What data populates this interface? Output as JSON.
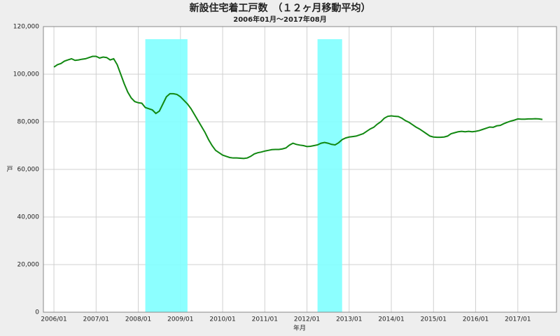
{
  "chart_data": {
    "type": "line",
    "title": "新設住宅着工戸数　（１２ヶ月移動平均）",
    "subtitle": "2006年01月～2017年08月",
    "x_label": "年月",
    "y_label": "戸",
    "color": "#118811",
    "shaded_color": "#80ffff",
    "shaded_regions": [
      {
        "start": "2008/03",
        "end": "2009/03"
      },
      {
        "start": "2012/04",
        "end": "2012/11"
      }
    ],
    "grid": true,
    "xlim": [
      "2005/10",
      "2017/12"
    ],
    "xticks": [
      "2006/01",
      "2007/01",
      "2008/01",
      "2009/01",
      "2010/01",
      "2011/01",
      "2012/01",
      "2013/01",
      "2014/01",
      "2015/01",
      "2016/01",
      "2017/01"
    ],
    "ylim": [
      0,
      120000
    ],
    "yticks": [
      0,
      {
        "value": 20000,
        "label": "20,000"
      },
      {
        "value": 40000,
        "label": "40,000"
      },
      {
        "value": 60000,
        "label": "60,000"
      },
      {
        "value": 80000,
        "label": "80,000"
      },
      {
        "value": 100000,
        "label": "100,000"
      },
      {
        "value": 120000,
        "label": "120,000"
      }
    ],
    "x": [
      "2006/01",
      "2006/02",
      "2006/03",
      "2006/04",
      "2006/05",
      "2006/06",
      "2006/07",
      "2006/08",
      "2006/09",
      "2006/10",
      "2006/11",
      "2006/12",
      "2007/01",
      "2007/02",
      "2007/03",
      "2007/04",
      "2007/05",
      "2007/06",
      "2007/07",
      "2007/08",
      "2007/09",
      "2007/10",
      "2007/11",
      "2007/12",
      "2008/01",
      "2008/02",
      "2008/03",
      "2008/04",
      "2008/05",
      "2008/06",
      "2008/07",
      "2008/08",
      "2008/09",
      "2008/10",
      "2008/11",
      "2008/12",
      "2009/01",
      "2009/02",
      "2009/03",
      "2009/04",
      "2009/05",
      "2009/06",
      "2009/07",
      "2009/08",
      "2009/09",
      "2009/10",
      "2009/11",
      "2009/12",
      "2010/01",
      "2010/02",
      "2010/03",
      "2010/04",
      "2010/05",
      "2010/06",
      "2010/07",
      "2010/08",
      "2010/09",
      "2010/10",
      "2010/11",
      "2010/12",
      "2011/01",
      "2011/02",
      "2011/03",
      "2011/04",
      "2011/05",
      "2011/06",
      "2011/07",
      "2011/08",
      "2011/09",
      "2011/10",
      "2011/11",
      "2011/12",
      "2012/01",
      "2012/02",
      "2012/03",
      "2012/04",
      "2012/05",
      "2012/06",
      "2012/07",
      "2012/08",
      "2012/09",
      "2012/10",
      "2012/11",
      "2012/12",
      "2013/01",
      "2013/02",
      "2013/03",
      "2013/04",
      "2013/05",
      "2013/06",
      "2013/07",
      "2013/08",
      "2013/09",
      "2013/10",
      "2013/11",
      "2013/12",
      "2014/01",
      "2014/02",
      "2014/03",
      "2014/04",
      "2014/05",
      "2014/06",
      "2014/07",
      "2014/08",
      "2014/09",
      "2014/10",
      "2014/11",
      "2014/12",
      "2015/01",
      "2015/02",
      "2015/03",
      "2015/04",
      "2015/05",
      "2015/06",
      "2015/07",
      "2015/08",
      "2015/09",
      "2015/10",
      "2015/11",
      "2015/12",
      "2016/01",
      "2016/02",
      "2016/03",
      "2016/04",
      "2016/05",
      "2016/06",
      "2016/07",
      "2016/08",
      "2016/09",
      "2016/10",
      "2016/11",
      "2016/12",
      "2017/01",
      "2017/02",
      "2017/03",
      "2017/04",
      "2017/05",
      "2017/06",
      "2017/07",
      "2017/08"
    ],
    "values": [
      103000,
      104000,
      104500,
      105500,
      106000,
      106500,
      105800,
      106000,
      106300,
      106500,
      107000,
      107500,
      107500,
      106800,
      107200,
      107000,
      106000,
      106500,
      104000,
      100000,
      96000,
      92500,
      90000,
      88500,
      88000,
      87800,
      86000,
      85500,
      85000,
      83500,
      84500,
      87500,
      90500,
      91800,
      91800,
      91500,
      90500,
      89000,
      87500,
      85500,
      83000,
      80500,
      78000,
      75500,
      72500,
      70000,
      68000,
      67000,
      66000,
      65500,
      65000,
      64800,
      64800,
      64700,
      64600,
      64800,
      65500,
      66500,
      67000,
      67300,
      67700,
      68000,
      68300,
      68400,
      68400,
      68600,
      69000,
      70200,
      71000,
      70500,
      70200,
      70000,
      69600,
      69700,
      70000,
      70300,
      71000,
      71300,
      71000,
      70500,
      70300,
      71200,
      72500,
      73200,
      73600,
      73800,
      74000,
      74500,
      75000,
      76000,
      77000,
      77700,
      79000,
      80000,
      81500,
      82300,
      82500,
      82300,
      82200,
      81500,
      80500,
      79800,
      78800,
      77800,
      77000,
      76000,
      75000,
      74000,
      73600,
      73500,
      73500,
      73600,
      74000,
      75000,
      75400,
      75800,
      76000,
      75800,
      76000,
      75800,
      76000,
      76300,
      76800,
      77300,
      77800,
      77700,
      78300,
      78500,
      79200,
      79800,
      80300,
      80700,
      81200,
      81100,
      81100,
      81200,
      81200,
      81300,
      81200,
      81000
    ]
  }
}
